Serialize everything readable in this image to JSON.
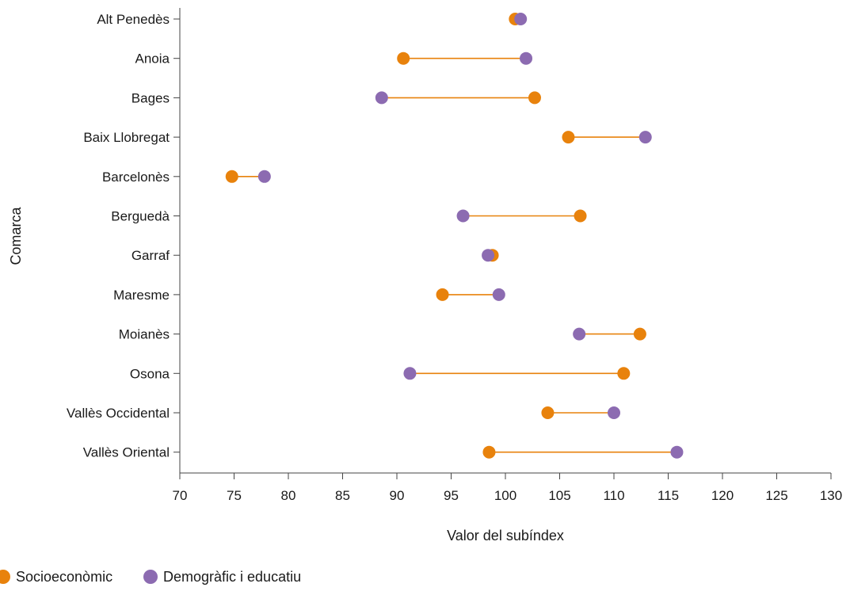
{
  "chart_data": {
    "type": "dumbbell",
    "xlabel": "Valor del subíndex",
    "ylabel": "Comarca",
    "xlim": [
      70,
      130
    ],
    "xticks": [
      70,
      75,
      80,
      85,
      90,
      95,
      100,
      105,
      110,
      115,
      120,
      125,
      130
    ],
    "grid": false,
    "legend_position": "bottom-left",
    "categories": [
      "Alt Penedès",
      "Anoia",
      "Bages",
      "Baix Llobregat",
      "Barcelonès",
      "Berguedà",
      "Garraf",
      "Maresme",
      "Moianès",
      "Osona",
      "Vallès Occidental",
      "Vallès Oriental"
    ],
    "series": [
      {
        "name": "Socioeconòmic",
        "color": "#e8820c",
        "values": [
          100.9,
          90.6,
          102.7,
          105.8,
          74.8,
          106.9,
          98.8,
          94.2,
          112.4,
          110.9,
          103.9,
          98.5
        ]
      },
      {
        "name": "Demogràfic i educatiu",
        "color": "#8c6bb1",
        "values": [
          101.4,
          101.9,
          88.6,
          112.9,
          77.8,
          96.1,
          98.4,
          99.4,
          106.8,
          91.2,
          110.0,
          115.8
        ]
      }
    ],
    "line_color": "#e8820c"
  }
}
